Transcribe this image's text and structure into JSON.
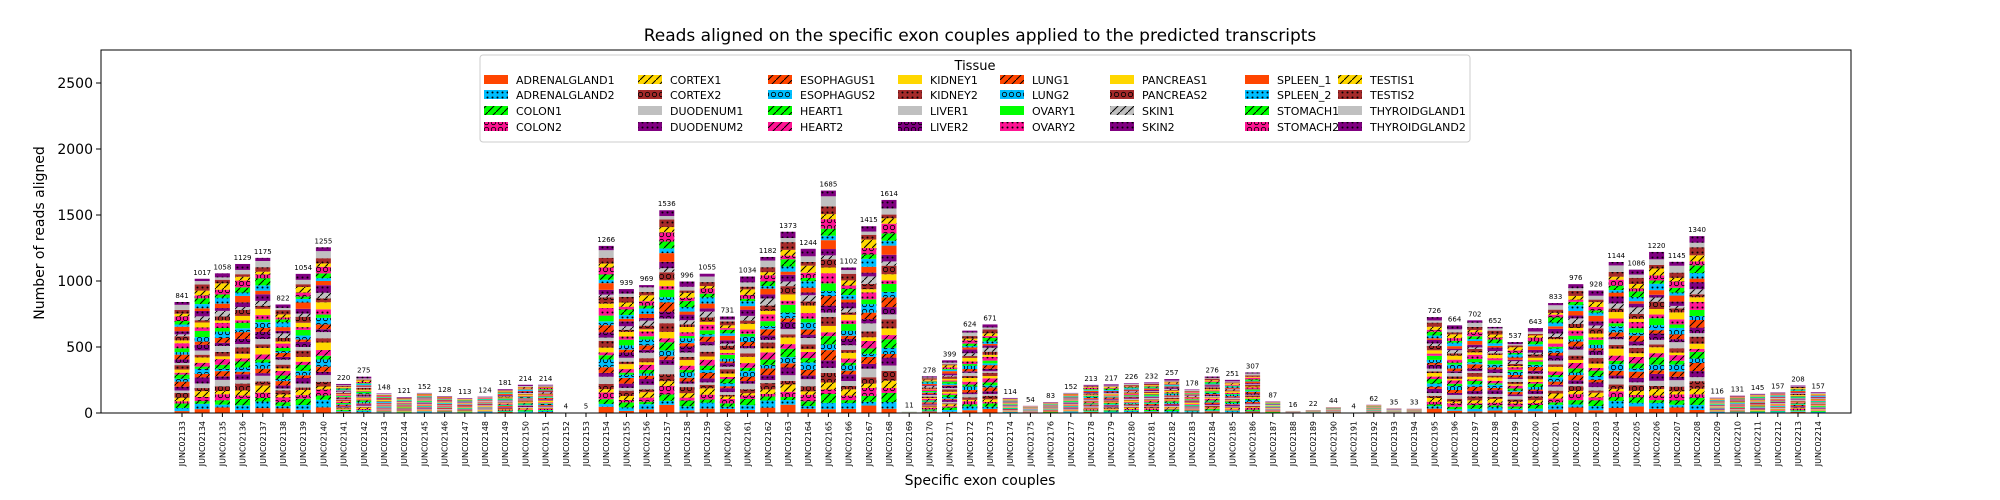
{
  "chart_data": {
    "type": "bar",
    "stacked": true,
    "title": "Reads aligned on the specific exon couples applied to the predicted transcripts",
    "xlabel": "Specific exon couples",
    "ylabel": "Number of reads aligned",
    "ylim": [
      0,
      2750
    ],
    "yticks": [
      0,
      500,
      1000,
      1500,
      2000,
      2500
    ],
    "grid": false,
    "legend": {
      "title": "Tissue",
      "placement": "top-center",
      "columns": 8
    },
    "categories": [
      "JUNC02133",
      "JUNC02134",
      "JUNC02135",
      "JUNC02136",
      "JUNC02137",
      "JUNC02138",
      "JUNC02139",
      "JUNC02140",
      "JUNC02141",
      "JUNC02142",
      "JUNC02143",
      "JUNC02144",
      "JUNC02145",
      "JUNC02146",
      "JUNC02147",
      "JUNC02148",
      "JUNC02149",
      "JUNC02150",
      "JUNC02151",
      "JUNC02152",
      "JUNC02153",
      "JUNC02154",
      "JUNC02155",
      "JUNC02156",
      "JUNC02157",
      "JUNC02158",
      "JUNC02159",
      "JUNC02160",
      "JUNC02161",
      "JUNC02162",
      "JUNC02163",
      "JUNC02164",
      "JUNC02165",
      "JUNC02166",
      "JUNC02167",
      "JUNC02168",
      "JUNC02169",
      "JUNC02170",
      "JUNC02171",
      "JUNC02172",
      "JUNC02173",
      "JUNC02174",
      "JUNC02175",
      "JUNC02176",
      "JUNC02177",
      "JUNC02178",
      "JUNC02179",
      "JUNC02180",
      "JUNC02181",
      "JUNC02182",
      "JUNC02183",
      "JUNC02184",
      "JUNC02185",
      "JUNC02186",
      "JUNC02187",
      "JUNC02188",
      "JUNC02189",
      "JUNC02190",
      "JUNC02191",
      "JUNC02192",
      "JUNC02193",
      "JUNC02194",
      "JUNC02195",
      "JUNC02196",
      "JUNC02197",
      "JUNC02198",
      "JUNC02199",
      "JUNC02200",
      "JUNC02201",
      "JUNC02202",
      "JUNC02203",
      "JUNC02204",
      "JUNC02205",
      "JUNC02206",
      "JUNC02207",
      "JUNC02208",
      "JUNC02209",
      "JUNC02210",
      "JUNC02211",
      "JUNC02212",
      "JUNC02213",
      "JUNC02214"
    ],
    "totals": [
      841,
      1017,
      1058,
      1129,
      1175,
      822,
      1054,
      1255,
      220,
      275,
      148,
      121,
      152,
      128,
      113,
      124,
      181,
      214,
      214,
      4,
      5,
      1266,
      939,
      969,
      1536,
      996,
      1055,
      731,
      1034,
      1182,
      1373,
      1244,
      1685,
      1102,
      1415,
      1614,
      11,
      278,
      399,
      624,
      671,
      114,
      54,
      83,
      152,
      213,
      217,
      226,
      232,
      257,
      178,
      276,
      251,
      307,
      87,
      16,
      22,
      44,
      4,
      62,
      35,
      33,
      726,
      664,
      702,
      652,
      537,
      643,
      833,
      976,
      928,
      1144,
      1086,
      1220,
      1145,
      1340,
      116,
      131,
      145,
      157,
      208,
      157
    ],
    "total_labels": [
      "841",
      "1017",
      "1058",
      "1129",
      "1175",
      "822",
      "1054",
      "1255",
      "220",
      "275",
      "148",
      "121",
      "152",
      "128",
      "113",
      "124",
      "181",
      "214",
      "214",
      "4",
      "5",
      "1266",
      "939",
      "969",
      "1536",
      "996",
      "1055",
      "731",
      "1034",
      "1182",
      "1373",
      "1244",
      "1685",
      "1102",
      "1415",
      "1614",
      "11",
      "278",
      "399",
      "624",
      "671",
      "114",
      "54",
      "83",
      "152",
      "213",
      "217",
      "226",
      "232",
      "257",
      "178",
      "276",
      "251",
      "307",
      "87",
      "16",
      "22",
      "44",
      "4",
      "62",
      "35",
      "33",
      "726",
      "664",
      "702",
      "652",
      "537",
      "643",
      "833",
      "976",
      "928",
      "1144",
      "1086",
      "1220",
      "1145",
      "1340",
      "116",
      "131",
      "145",
      "157",
      "208",
      "157"
    ],
    "series": [
      {
        "name": "ADRENALGLAND1",
        "color": "#FF4500",
        "hatch": "none"
      },
      {
        "name": "ADRENALGLAND2",
        "color": "#00BFFF",
        "hatch": "dots"
      },
      {
        "name": "COLON1",
        "color": "#00FF00",
        "hatch": "slash"
      },
      {
        "name": "COLON2",
        "color": "#FF1493",
        "hatch": "circles"
      },
      {
        "name": "CORTEX1",
        "color": "#FFD700",
        "hatch": "slash"
      },
      {
        "name": "CORTEX2",
        "color": "#A52A2A",
        "hatch": "circles"
      },
      {
        "name": "DUODENUM1",
        "color": "#C0C0C0",
        "hatch": "none"
      },
      {
        "name": "DUODENUM2",
        "color": "#800080",
        "hatch": "dots"
      },
      {
        "name": "ESOPHAGUS1",
        "color": "#FF4500",
        "hatch": "slash"
      },
      {
        "name": "ESOPHAGUS2",
        "color": "#00BFFF",
        "hatch": "circles"
      },
      {
        "name": "HEART1",
        "color": "#00FF00",
        "hatch": "slash"
      },
      {
        "name": "HEART2",
        "color": "#FF1493",
        "hatch": "slash"
      },
      {
        "name": "KIDNEY1",
        "color": "#FFD700",
        "hatch": "none"
      },
      {
        "name": "KIDNEY2",
        "color": "#A52A2A",
        "hatch": "dots"
      },
      {
        "name": "LIVER1",
        "color": "#C0C0C0",
        "hatch": "none"
      },
      {
        "name": "LIVER2",
        "color": "#800080",
        "hatch": "circles"
      },
      {
        "name": "LUNG1",
        "color": "#FF4500",
        "hatch": "slash"
      },
      {
        "name": "LUNG2",
        "color": "#00BFFF",
        "hatch": "circles"
      },
      {
        "name": "OVARY1",
        "color": "#00FF00",
        "hatch": "none"
      },
      {
        "name": "OVARY2",
        "color": "#FF1493",
        "hatch": "dots"
      },
      {
        "name": "PANCREAS1",
        "color": "#FFD700",
        "hatch": "none"
      },
      {
        "name": "PANCREAS2",
        "color": "#A52A2A",
        "hatch": "circles"
      },
      {
        "name": "SKIN1",
        "color": "#C0C0C0",
        "hatch": "slash"
      },
      {
        "name": "SKIN2",
        "color": "#800080",
        "hatch": "dots"
      },
      {
        "name": "SPLEEN_1",
        "color": "#FF4500",
        "hatch": "none"
      },
      {
        "name": "SPLEEN_2",
        "color": "#00BFFF",
        "hatch": "dots"
      },
      {
        "name": "STOMACH1",
        "color": "#00FF00",
        "hatch": "slash"
      },
      {
        "name": "STOMACH2",
        "color": "#FF1493",
        "hatch": "circles"
      },
      {
        "name": "TESTIS1",
        "color": "#FFD700",
        "hatch": "slash"
      },
      {
        "name": "TESTIS2",
        "color": "#A52A2A",
        "hatch": "dots"
      },
      {
        "name": "THYROIDGLAND1",
        "color": "#C0C0C0",
        "hatch": "none"
      },
      {
        "name": "THYROIDGLAND2",
        "color": "#800080",
        "hatch": "dots"
      }
    ]
  }
}
